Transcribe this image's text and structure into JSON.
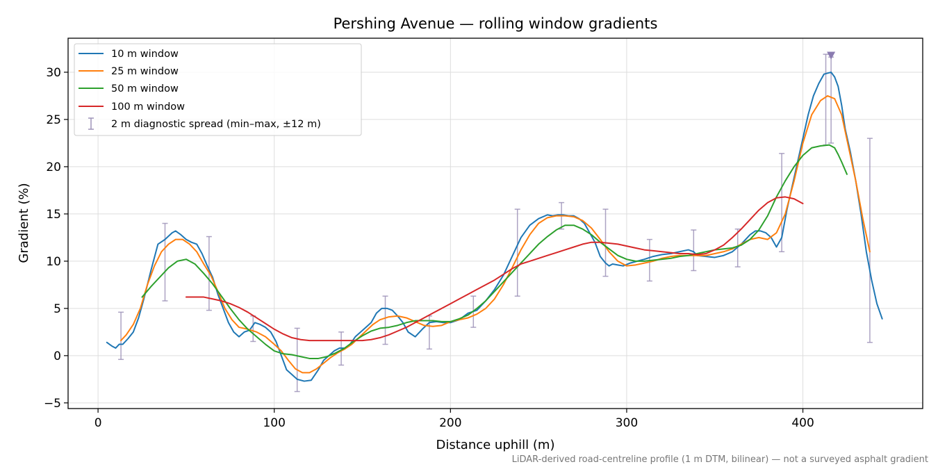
{
  "chart_data": {
    "type": "line",
    "title": "Pershing Avenue — rolling window gradients",
    "xlabel": "Distance uphill (m)",
    "ylabel": "Gradient (%)",
    "xlim": [
      -17,
      468
    ],
    "ylim": [
      -5.6,
      33.6
    ],
    "xticks": [
      0,
      100,
      200,
      300,
      400
    ],
    "yticks": [
      -5,
      0,
      5,
      10,
      15,
      20,
      25,
      30
    ],
    "xtick_labels": [
      "0",
      "100",
      "200",
      "300",
      "400"
    ],
    "ytick_labels": [
      "−5",
      "0",
      "5",
      "10",
      "15",
      "20",
      "25",
      "30"
    ],
    "grid": true,
    "legend_placement": "top-left",
    "footnote": "LiDAR-derived road-centreline profile (1 m DTM, bilinear) — not a surveyed asphalt gradient",
    "series": [
      {
        "name": "10 m window",
        "color": "#1f77b4",
        "x": [
          5,
          8,
          10,
          12,
          14,
          17,
          20,
          23,
          26,
          30,
          34,
          38,
          42,
          44,
          47,
          50,
          53,
          56,
          59,
          62,
          65,
          68,
          71,
          74,
          77,
          80,
          83,
          86,
          89,
          92,
          95,
          98,
          101,
          104,
          107,
          110,
          113,
          117,
          121,
          125,
          128,
          131,
          134,
          137,
          140,
          143,
          146,
          149,
          152,
          155,
          158,
          161,
          164,
          167,
          170,
          173,
          176,
          180,
          184,
          188,
          192,
          196,
          200,
          205,
          210,
          215,
          220,
          225,
          230,
          235,
          240,
          245,
          250,
          255,
          258,
          261,
          264,
          267,
          270,
          273,
          276,
          279,
          282,
          285,
          288,
          290,
          292,
          295,
          298,
          302,
          306,
          310,
          315,
          320,
          325,
          330,
          335,
          338,
          340,
          345,
          350,
          355,
          360,
          365,
          370,
          373,
          376,
          379,
          382,
          385,
          388,
          391,
          394,
          397,
          400,
          403,
          406,
          409,
          412,
          414,
          416,
          418,
          420,
          422,
          424,
          427,
          430,
          433,
          436,
          439,
          442,
          445
        ],
        "y": [
          1.4,
          1.0,
          0.8,
          1.2,
          1.2,
          1.8,
          2.5,
          4.0,
          6.0,
          9.0,
          11.8,
          12.3,
          13.0,
          13.2,
          12.8,
          12.3,
          12.0,
          11.8,
          10.8,
          9.5,
          8.3,
          6.5,
          5.0,
          3.5,
          2.5,
          2.0,
          2.5,
          2.7,
          3.5,
          3.3,
          3.0,
          2.5,
          1.5,
          0.0,
          -1.5,
          -2.0,
          -2.5,
          -2.7,
          -2.6,
          -1.5,
          -0.5,
          0.0,
          0.5,
          0.8,
          0.8,
          1.2,
          2.0,
          2.5,
          3.0,
          3.5,
          4.5,
          5.0,
          5.0,
          4.8,
          4.2,
          3.5,
          2.5,
          2.0,
          2.8,
          3.5,
          3.6,
          3.5,
          3.5,
          3.8,
          4.5,
          4.8,
          5.8,
          7.0,
          8.5,
          10.5,
          12.5,
          13.8,
          14.5,
          14.9,
          14.8,
          14.9,
          14.9,
          14.8,
          14.8,
          14.5,
          14.0,
          13.0,
          12.0,
          10.5,
          9.8,
          9.5,
          9.7,
          9.6,
          9.5,
          9.8,
          10.0,
          10.2,
          10.5,
          10.7,
          10.8,
          11.0,
          11.2,
          11.0,
          10.6,
          10.5,
          10.4,
          10.6,
          11.0,
          11.8,
          12.8,
          13.2,
          13.2,
          13.0,
          12.5,
          11.5,
          12.5,
          15.5,
          18.0,
          20.5,
          23.0,
          25.5,
          27.5,
          28.8,
          29.8,
          29.9,
          30.0,
          29.5,
          28.5,
          26.5,
          24.0,
          21.5,
          18.5,
          15.0,
          11.0,
          8.0,
          5.5,
          3.9
        ]
      },
      {
        "name": "25 m window",
        "color": "#ff7f0e",
        "x": [
          13,
          16,
          20,
          24,
          28,
          32,
          36,
          40,
          44,
          48,
          52,
          56,
          60,
          64,
          68,
          72,
          76,
          80,
          85,
          90,
          95,
          100,
          104,
          108,
          112,
          116,
          120,
          124,
          128,
          132,
          136,
          140,
          144,
          148,
          152,
          156,
          160,
          165,
          170,
          175,
          180,
          185,
          190,
          195,
          200,
          205,
          210,
          215,
          220,
          225,
          230,
          235,
          240,
          245,
          250,
          255,
          260,
          265,
          270,
          275,
          280,
          285,
          290,
          295,
          300,
          305,
          310,
          315,
          320,
          325,
          330,
          335,
          340,
          345,
          350,
          355,
          360,
          365,
          370,
          375,
          380,
          385,
          390,
          395,
          400,
          405,
          410,
          414,
          418,
          422,
          426,
          430,
          434,
          438
        ],
        "y": [
          1.6,
          2.2,
          3.3,
          5.0,
          7.5,
          9.5,
          11.0,
          11.8,
          12.3,
          12.3,
          11.8,
          11.0,
          9.7,
          8.5,
          6.8,
          5.0,
          3.8,
          3.0,
          2.8,
          2.5,
          2.0,
          1.2,
          0.5,
          -0.5,
          -1.4,
          -1.8,
          -1.8,
          -1.4,
          -0.8,
          -0.2,
          0.3,
          0.7,
          1.2,
          1.9,
          2.6,
          3.3,
          3.8,
          4.1,
          4.2,
          4.0,
          3.6,
          3.2,
          3.1,
          3.2,
          3.6,
          3.8,
          4.0,
          4.4,
          5.0,
          6.0,
          7.5,
          9.3,
          11.2,
          12.8,
          14.0,
          14.6,
          14.8,
          14.8,
          14.7,
          14.3,
          13.5,
          12.3,
          11.0,
          10.0,
          9.5,
          9.6,
          9.8,
          10.0,
          10.3,
          10.5,
          10.6,
          10.6,
          10.6,
          10.6,
          10.8,
          11.0,
          11.3,
          11.8,
          12.3,
          12.5,
          12.3,
          13.0,
          15.0,
          18.5,
          22.5,
          25.5,
          27.0,
          27.5,
          27.2,
          25.5,
          22.0,
          18.5,
          14.5,
          11.0
        ]
      },
      {
        "name": "50 m window",
        "color": "#2ca02c",
        "x": [
          25,
          30,
          35,
          40,
          45,
          50,
          55,
          60,
          65,
          70,
          75,
          80,
          85,
          90,
          95,
          100,
          105,
          110,
          115,
          120,
          125,
          130,
          135,
          140,
          145,
          150,
          155,
          160,
          165,
          170,
          175,
          180,
          185,
          190,
          195,
          200,
          205,
          210,
          215,
          220,
          225,
          230,
          235,
          240,
          245,
          250,
          255,
          260,
          265,
          270,
          275,
          280,
          285,
          290,
          295,
          300,
          305,
          310,
          315,
          320,
          325,
          330,
          335,
          340,
          345,
          350,
          355,
          360,
          365,
          370,
          375,
          380,
          385,
          390,
          395,
          400,
          405,
          410,
          415,
          418,
          420,
          422,
          425
        ],
        "y": [
          6.2,
          7.3,
          8.3,
          9.3,
          10.0,
          10.2,
          9.7,
          8.7,
          7.6,
          6.3,
          5.0,
          3.8,
          2.8,
          2.0,
          1.2,
          0.5,
          0.2,
          0.1,
          -0.1,
          -0.3,
          -0.3,
          -0.1,
          0.3,
          0.8,
          1.5,
          2.1,
          2.6,
          2.9,
          3.0,
          3.2,
          3.5,
          3.7,
          3.7,
          3.7,
          3.6,
          3.6,
          3.9,
          4.3,
          5.0,
          5.8,
          6.8,
          7.8,
          8.8,
          9.8,
          10.8,
          11.8,
          12.6,
          13.3,
          13.8,
          13.8,
          13.4,
          12.8,
          12.0,
          11.3,
          10.6,
          10.2,
          10.0,
          10.0,
          10.1,
          10.2,
          10.3,
          10.5,
          10.6,
          10.8,
          11.0,
          11.2,
          11.3,
          11.4,
          11.7,
          12.3,
          13.3,
          14.8,
          16.8,
          18.5,
          20.0,
          21.2,
          22.0,
          22.2,
          22.3,
          22.0,
          21.3,
          20.5,
          19.2
        ]
      },
      {
        "name": "100 m window",
        "color": "#d62728",
        "x": [
          50,
          55,
          60,
          65,
          70,
          75,
          80,
          85,
          90,
          95,
          100,
          105,
          110,
          115,
          120,
          125,
          130,
          135,
          140,
          145,
          150,
          155,
          160,
          165,
          170,
          175,
          180,
          185,
          190,
          195,
          200,
          205,
          210,
          215,
          220,
          225,
          230,
          235,
          240,
          245,
          250,
          255,
          260,
          265,
          270,
          275,
          280,
          285,
          290,
          295,
          300,
          305,
          310,
          315,
          320,
          325,
          330,
          335,
          340,
          345,
          350,
          355,
          360,
          365,
          370,
          375,
          380,
          385,
          390,
          395,
          400
        ],
        "y": [
          6.2,
          6.2,
          6.2,
          6.0,
          5.8,
          5.5,
          5.1,
          4.6,
          4.0,
          3.4,
          2.8,
          2.3,
          1.9,
          1.7,
          1.6,
          1.6,
          1.6,
          1.6,
          1.6,
          1.6,
          1.6,
          1.7,
          1.9,
          2.2,
          2.6,
          3.0,
          3.5,
          4.0,
          4.5,
          5.0,
          5.5,
          6.0,
          6.5,
          7.0,
          7.5,
          8.0,
          8.6,
          9.2,
          9.7,
          10.0,
          10.3,
          10.6,
          10.9,
          11.2,
          11.5,
          11.8,
          12.0,
          12.0,
          11.9,
          11.8,
          11.6,
          11.4,
          11.2,
          11.1,
          11.0,
          10.9,
          10.8,
          10.8,
          10.7,
          10.8,
          11.2,
          11.7,
          12.5,
          13.4,
          14.4,
          15.4,
          16.2,
          16.7,
          16.8,
          16.6,
          16.1
        ]
      }
    ],
    "diagnostic_spread": {
      "name": "2 m diagnostic spread (min–max, ±12 m)",
      "color": "#9d93b8",
      "points": [
        {
          "x": 13,
          "min": -0.4,
          "max": 4.6
        },
        {
          "x": 38,
          "min": 5.8,
          "max": 14.0
        },
        {
          "x": 63,
          "min": 4.8,
          "max": 12.6
        },
        {
          "x": 88,
          "min": 1.5,
          "max": 4.2
        },
        {
          "x": 113,
          "min": -3.8,
          "max": 2.9
        },
        {
          "x": 138,
          "min": -1.0,
          "max": 2.5
        },
        {
          "x": 163,
          "min": 1.2,
          "max": 6.3
        },
        {
          "x": 188,
          "min": 0.7,
          "max": 4.2
        },
        {
          "x": 213,
          "min": 3.0,
          "max": 6.3
        },
        {
          "x": 238,
          "min": 6.3,
          "max": 15.5
        },
        {
          "x": 263,
          "min": 13.4,
          "max": 16.2
        },
        {
          "x": 288,
          "min": 8.4,
          "max": 15.5
        },
        {
          "x": 313,
          "min": 7.9,
          "max": 12.3
        },
        {
          "x": 338,
          "min": 9.0,
          "max": 13.3
        },
        {
          "x": 363,
          "min": 9.4,
          "max": 13.4
        },
        {
          "x": 388,
          "min": 11.0,
          "max": 21.4
        },
        {
          "x": 413,
          "min": 22.3,
          "max": 31.9
        },
        {
          "x": 416,
          "min": 22.5,
          "max": 31.6
        },
        {
          "x": 438,
          "min": 1.4,
          "max": 23.0
        }
      ]
    },
    "peak_marker": {
      "x": 416,
      "y": 31.8,
      "color": "#8a7bb0"
    }
  }
}
